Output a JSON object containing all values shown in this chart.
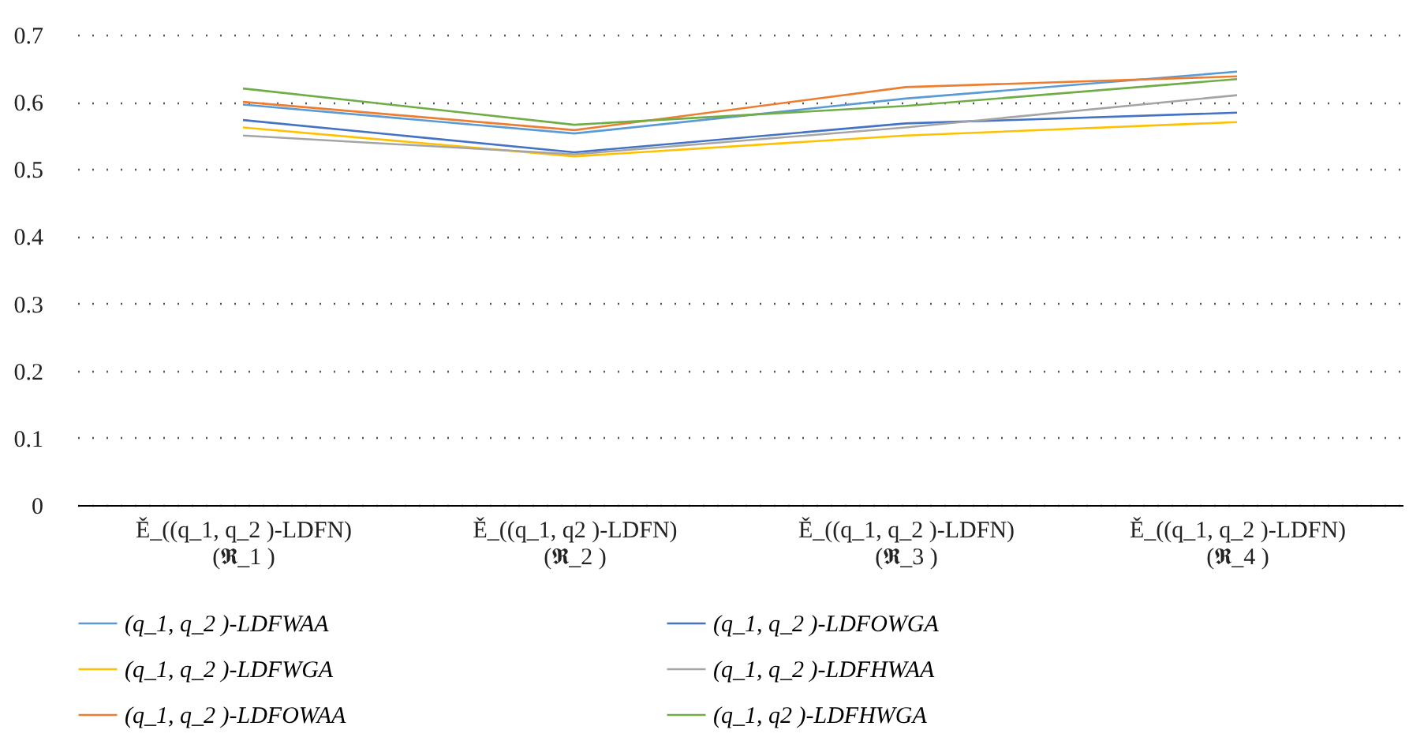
{
  "chart_data": {
    "type": "line",
    "categories": [
      "Ě_((q_1, q_2 )-LDFN)\n(𝕽_1 )",
      "Ě_((q_1, q2 )-LDFN)\n(𝕽_2 )",
      "Ě_((q_1, q_2 )-LDFN)\n(𝕽_3 )",
      "Ě_((q_1, q_2 )-LDFN)\n(𝕽_4 )"
    ],
    "series": [
      {
        "name": "(q_1, q_2 )-LDFWAA",
        "color": "#5b9bd5",
        "values": [
          0.596,
          0.553,
          0.605,
          0.645
        ]
      },
      {
        "name": "(q_1, q_2 )-LDFOWGA",
        "color": "#4472c4",
        "values": [
          0.573,
          0.525,
          0.568,
          0.584
        ]
      },
      {
        "name": "(q_1, q_2 )-LDFWGA",
        "color": "#ffc000",
        "values": [
          0.562,
          0.519,
          0.55,
          0.57
        ]
      },
      {
        "name": "(q_1, q_2 )-LDFHWAA",
        "color": "#a5a5a5",
        "values": [
          0.55,
          0.522,
          0.562,
          0.61
        ]
      },
      {
        "name": "(q_1, q_2 )-LDFOWAA",
        "color": "#ed7d31",
        "values": [
          0.6,
          0.558,
          0.622,
          0.638
        ]
      },
      {
        "name": "(q_1, q2 )-LDFHWGA",
        "color": "#70ad47",
        "values": [
          0.62,
          0.566,
          0.594,
          0.634
        ]
      }
    ],
    "ylim": [
      0,
      0.7
    ],
    "yticks": [
      0,
      0.1,
      0.2,
      0.3,
      0.4,
      0.5,
      0.6,
      0.7
    ],
    "grid": "y",
    "legend": "bottom",
    "marker": "none",
    "line_style": "solid"
  }
}
